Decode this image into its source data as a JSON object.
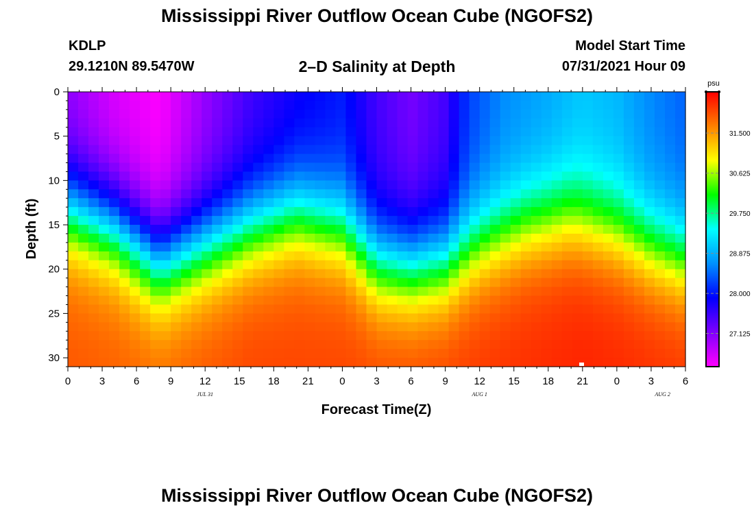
{
  "header": {
    "title": "Mississippi River Outflow Ocean Cube (NGOFS2)",
    "station": "KDLP",
    "coords": "29.1210N  89.5470W",
    "subtitle": "2–D Salinity at Depth",
    "start_label": "Model Start Time",
    "start_value": "07/31/2021 Hour 09"
  },
  "chart_data": {
    "type": "heatmap",
    "title": "2–D Salinity at Depth",
    "xlabel": "Forecast Time(Z)",
    "ylabel": "Depth (ft)",
    "x_range_hours": [
      0,
      54
    ],
    "y_range_ft": [
      0,
      31
    ],
    "y_inverted": true,
    "x_ticks": [
      {
        "h": 0,
        "label": "0"
      },
      {
        "h": 3,
        "label": "3"
      },
      {
        "h": 6,
        "label": "6"
      },
      {
        "h": 9,
        "label": "9"
      },
      {
        "h": 12,
        "label": "12"
      },
      {
        "h": 15,
        "label": "15"
      },
      {
        "h": 18,
        "label": "18"
      },
      {
        "h": 21,
        "label": "21"
      },
      {
        "h": 24,
        "label": "0"
      },
      {
        "h": 27,
        "label": "3"
      },
      {
        "h": 30,
        "label": "6"
      },
      {
        "h": 33,
        "label": "9"
      },
      {
        "h": 36,
        "label": "12"
      },
      {
        "h": 39,
        "label": "15"
      },
      {
        "h": 42,
        "label": "18"
      },
      {
        "h": 45,
        "label": "21"
      },
      {
        "h": 48,
        "label": "0"
      },
      {
        "h": 51,
        "label": "3"
      },
      {
        "h": 54,
        "label": "6"
      }
    ],
    "date_labels": [
      {
        "h": 12,
        "label": "JUL 31"
      },
      {
        "h": 36,
        "label": "AUG 1"
      },
      {
        "h": 52,
        "label": "AUG 2"
      }
    ],
    "y_ticks": [
      0,
      5,
      10,
      15,
      20,
      25,
      30
    ],
    "colorbar": {
      "unit": "psu",
      "range": [
        26.4,
        32.4
      ],
      "ticks": [
        "27.125",
        "28.000",
        "28.875",
        "29.750",
        "30.625",
        "31.500"
      ],
      "colors": [
        "#ff00ff",
        "#7f00ff",
        "#0000ff",
        "#0090ff",
        "#00ffff",
        "#00ff00",
        "#ffff00",
        "#ff8000",
        "#ff0000"
      ]
    },
    "salinity_surface_psu": [
      {
        "h": 0,
        "v": 27.0
      },
      {
        "h": 4,
        "v": 26.6
      },
      {
        "h": 8,
        "v": 26.4
      },
      {
        "h": 12,
        "v": 27.0
      },
      {
        "h": 16,
        "v": 27.5
      },
      {
        "h": 20,
        "v": 27.8
      },
      {
        "h": 24,
        "v": 28.0
      },
      {
        "h": 27,
        "v": 27.5
      },
      {
        "h": 30,
        "v": 27.2
      },
      {
        "h": 33,
        "v": 27.5
      },
      {
        "h": 35,
        "v": 28.2
      },
      {
        "h": 38,
        "v": 28.6
      },
      {
        "h": 42,
        "v": 28.8
      },
      {
        "h": 45,
        "v": 29.0
      },
      {
        "h": 48,
        "v": 28.9
      },
      {
        "h": 51,
        "v": 28.6
      },
      {
        "h": 54,
        "v": 28.4
      }
    ],
    "halocline_depth_ft": [
      {
        "h": 0,
        "v": 13.5
      },
      {
        "h": 4,
        "v": 15.5
      },
      {
        "h": 8,
        "v": 19.5
      },
      {
        "h": 12,
        "v": 17.5
      },
      {
        "h": 16,
        "v": 15.5
      },
      {
        "h": 20,
        "v": 14.0
      },
      {
        "h": 24,
        "v": 15.5
      },
      {
        "h": 27,
        "v": 19.5
      },
      {
        "h": 30,
        "v": 20.0
      },
      {
        "h": 33,
        "v": 19.5
      },
      {
        "h": 36,
        "v": 17.0
      },
      {
        "h": 40,
        "v": 15.0
      },
      {
        "h": 44,
        "v": 14.0
      },
      {
        "h": 48,
        "v": 15.5
      },
      {
        "h": 51,
        "v": 17.5
      },
      {
        "h": 54,
        "v": 19.0
      }
    ],
    "salinity_bottom_psu": [
      {
        "h": 0,
        "v": 31.9
      },
      {
        "h": 8,
        "v": 31.8
      },
      {
        "h": 16,
        "v": 32.0
      },
      {
        "h": 24,
        "v": 32.0
      },
      {
        "h": 30,
        "v": 32.0
      },
      {
        "h": 38,
        "v": 32.1
      },
      {
        "h": 45,
        "v": 32.2
      },
      {
        "h": 54,
        "v": 32.1
      }
    ]
  }
}
